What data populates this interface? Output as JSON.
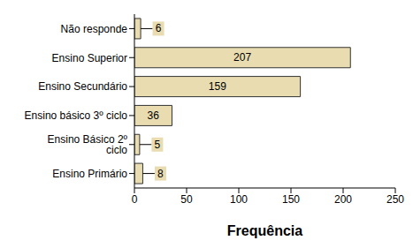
{
  "chart_data": {
    "type": "bar",
    "orientation": "horizontal",
    "categories": [
      "Não responde",
      "Ensino Superior",
      "Ensino Secundário",
      "Ensino básico 3º ciclo",
      "Ensino Básico 2º ciclo",
      "Ensino Primário"
    ],
    "values": [
      6,
      207,
      159,
      36,
      5,
      8
    ],
    "color": "#e8dcb0",
    "xlabel": "Frequência",
    "xlim": [
      0,
      250
    ],
    "xticks": [
      0,
      50,
      100,
      150,
      200,
      250
    ],
    "grid": false,
    "data_labels": true
  }
}
